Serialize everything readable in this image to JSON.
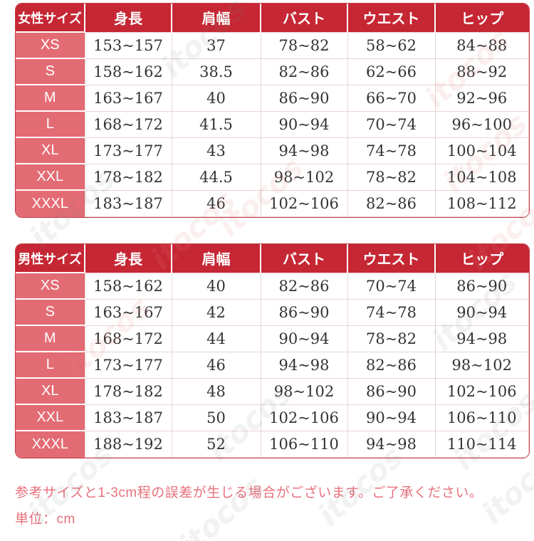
{
  "watermark": {
    "text": "itocos"
  },
  "colors": {
    "header_bg": "#c62734",
    "size_col_bg": "#e36b74",
    "grid_line": "#e9d3d3",
    "table_border": "#c43a44",
    "cell_text": "#333333",
    "note_text": "#e8717c"
  },
  "chart_data": [
    {
      "type": "table",
      "title": "女性サイズ",
      "columns": [
        "女性サイズ",
        "身長",
        "肩幅",
        "バスト",
        "ウエスト",
        "ヒップ"
      ],
      "rows": [
        [
          "XS",
          "153~157",
          "37",
          "78~82",
          "58~62",
          "84~88"
        ],
        [
          "S",
          "158~162",
          "38.5",
          "82~86",
          "62~66",
          "88~92"
        ],
        [
          "M",
          "163~167",
          "40",
          "86~90",
          "66~70",
          "92~96"
        ],
        [
          "L",
          "168~172",
          "41.5",
          "90~94",
          "70~74",
          "96~100"
        ],
        [
          "XL",
          "173~177",
          "43",
          "94~98",
          "74~78",
          "100~104"
        ],
        [
          "XXL",
          "178~182",
          "44.5",
          "98~102",
          "78~82",
          "104~108"
        ],
        [
          "XXXL",
          "183~187",
          "46",
          "102~106",
          "82~86",
          "108~112"
        ]
      ]
    },
    {
      "type": "table",
      "title": "男性サイズ",
      "columns": [
        "男性サイズ",
        "身長",
        "肩幅",
        "バスト",
        "ウエスト",
        "ヒップ"
      ],
      "rows": [
        [
          "XS",
          "158~162",
          "40",
          "82~86",
          "70~74",
          "86~90"
        ],
        [
          "S",
          "163~167",
          "42",
          "86~90",
          "74~78",
          "90~94"
        ],
        [
          "M",
          "168~172",
          "44",
          "90~94",
          "78~82",
          "94~98"
        ],
        [
          "L",
          "173~177",
          "46",
          "94~98",
          "82~86",
          "98~102"
        ],
        [
          "XL",
          "178~182",
          "48",
          "98~102",
          "86~90",
          "102~106"
        ],
        [
          "XXL",
          "183~187",
          "50",
          "102~106",
          "90~94",
          "106~110"
        ],
        [
          "XXXL",
          "188~192",
          "52",
          "106~110",
          "94~98",
          "110~114"
        ]
      ]
    }
  ],
  "footer": {
    "note": "参考サイズと1-3cm程の誤差が生じる場合がございます。ご了承ください。",
    "unit_label": "単位：cm"
  }
}
